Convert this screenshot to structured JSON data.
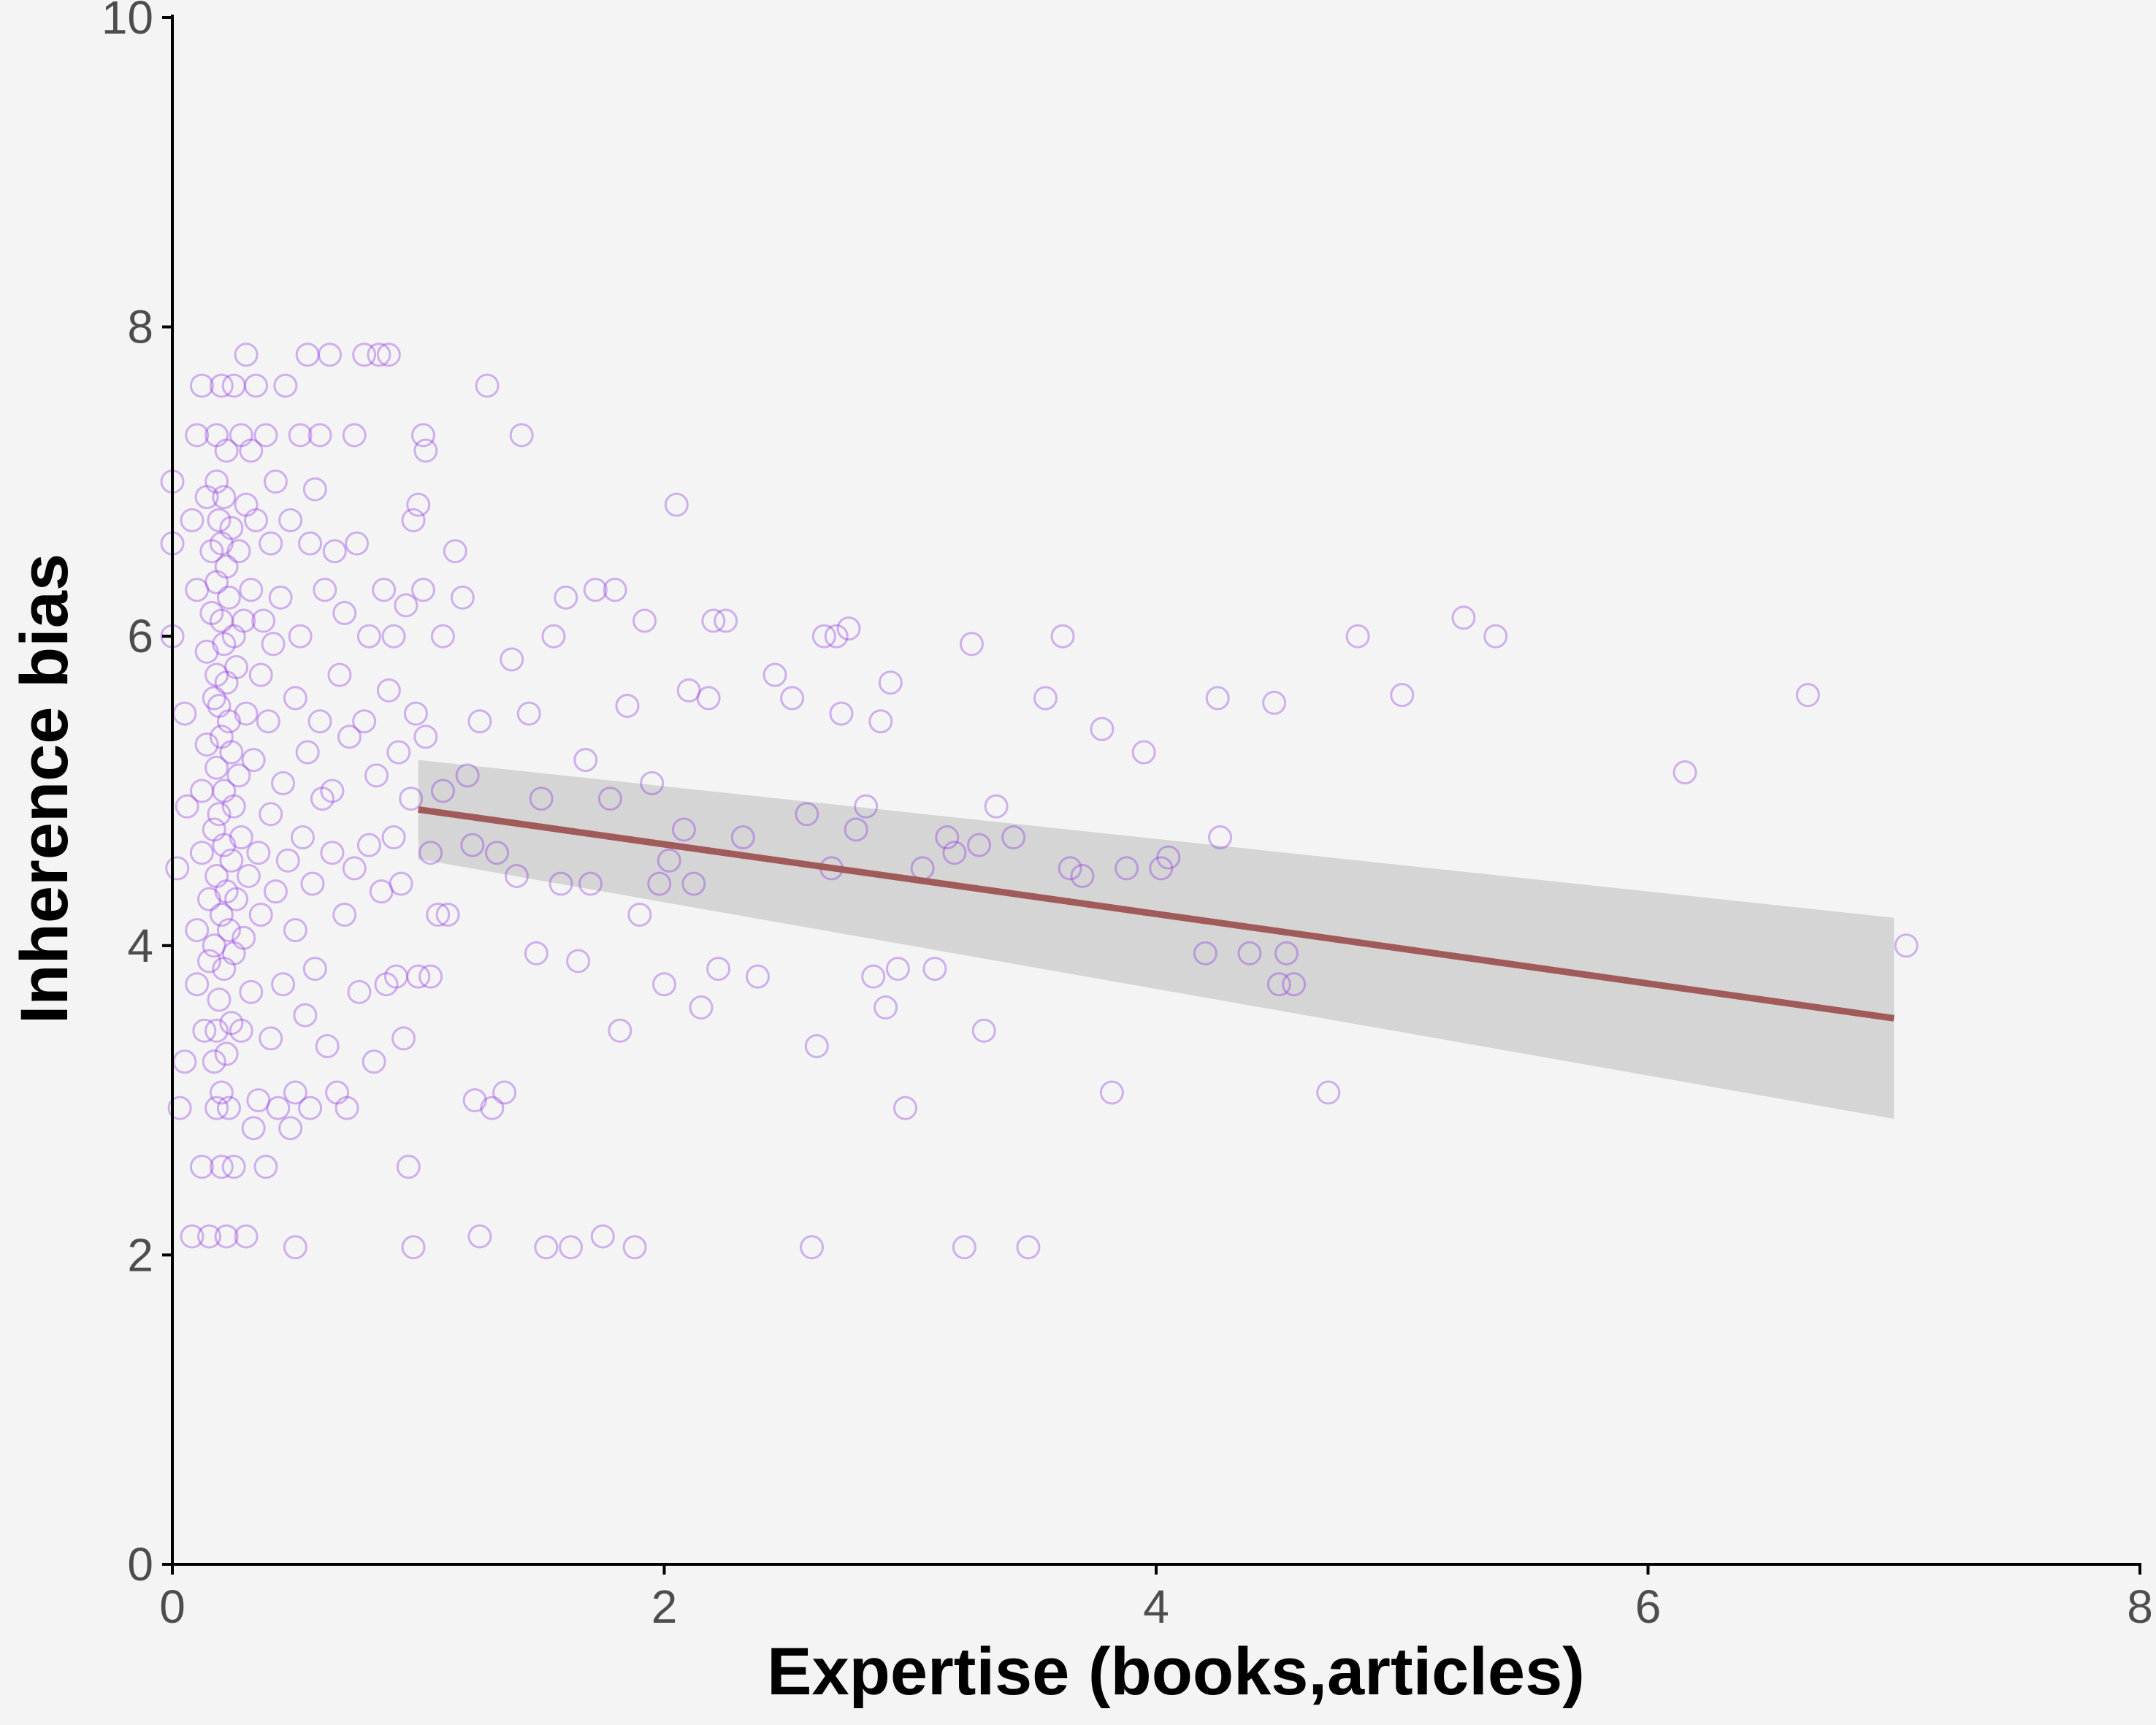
{
  "colors": {
    "background": "#f4f4f4",
    "points": "#8a2be2",
    "fit_line": "#a05a5a",
    "ci_band": "#cfcfcf",
    "axis": "#000000",
    "tick_text": "#4d4d4d"
  },
  "chart_data": {
    "type": "scatter",
    "xlabel": "Expertise (books,articles)",
    "ylabel": "Inherence bias",
    "xlim": [
      0,
      8
    ],
    "ylim": [
      0,
      10
    ],
    "x_ticks": [
      "0",
      "2",
      "4",
      "6",
      "8"
    ],
    "y_ticks": [
      "0",
      "2",
      "4",
      "6",
      "8",
      "10"
    ],
    "grid": false,
    "point_style": "hollow circles, semi-transparent purple",
    "points": [
      [
        0.0,
        7.0
      ],
      [
        0.0,
        6.6
      ],
      [
        0.0,
        6.0
      ],
      [
        0.02,
        4.5
      ],
      [
        0.03,
        2.95
      ],
      [
        0.05,
        3.25
      ],
      [
        0.05,
        5.5
      ],
      [
        0.06,
        4.9
      ],
      [
        0.08,
        2.12
      ],
      [
        0.08,
        6.75
      ],
      [
        0.1,
        3.75
      ],
      [
        0.1,
        4.1
      ],
      [
        0.1,
        6.3
      ],
      [
        0.1,
        7.3
      ],
      [
        0.12,
        7.62
      ],
      [
        0.12,
        5.0
      ],
      [
        0.12,
        4.6
      ],
      [
        0.12,
        2.57
      ],
      [
        0.13,
        3.45
      ],
      [
        0.14,
        6.9
      ],
      [
        0.14,
        5.9
      ],
      [
        0.14,
        5.3
      ],
      [
        0.15,
        4.3
      ],
      [
        0.15,
        3.9
      ],
      [
        0.15,
        2.12
      ],
      [
        0.16,
        6.55
      ],
      [
        0.16,
        6.15
      ],
      [
        0.17,
        5.6
      ],
      [
        0.17,
        4.75
      ],
      [
        0.17,
        4.0
      ],
      [
        0.17,
        3.25
      ],
      [
        0.18,
        7.3
      ],
      [
        0.18,
        7.0
      ],
      [
        0.18,
        6.35
      ],
      [
        0.18,
        5.75
      ],
      [
        0.18,
        5.15
      ],
      [
        0.18,
        4.45
      ],
      [
        0.18,
        3.45
      ],
      [
        0.18,
        2.95
      ],
      [
        0.19,
        6.75
      ],
      [
        0.19,
        5.55
      ],
      [
        0.19,
        4.85
      ],
      [
        0.19,
        3.65
      ],
      [
        0.2,
        7.62
      ],
      [
        0.2,
        6.6
      ],
      [
        0.2,
        6.1
      ],
      [
        0.2,
        5.35
      ],
      [
        0.2,
        4.2
      ],
      [
        0.2,
        3.05
      ],
      [
        0.2,
        2.57
      ],
      [
        0.21,
        6.9
      ],
      [
        0.21,
        5.95
      ],
      [
        0.21,
        5.0
      ],
      [
        0.21,
        4.65
      ],
      [
        0.21,
        3.85
      ],
      [
        0.22,
        7.2
      ],
      [
        0.22,
        6.45
      ],
      [
        0.22,
        5.7
      ],
      [
        0.22,
        4.35
      ],
      [
        0.22,
        3.3
      ],
      [
        0.22,
        2.12
      ],
      [
        0.23,
        6.25
      ],
      [
        0.23,
        5.45
      ],
      [
        0.23,
        4.1
      ],
      [
        0.23,
        2.95
      ],
      [
        0.24,
        6.7
      ],
      [
        0.24,
        5.25
      ],
      [
        0.24,
        4.55
      ],
      [
        0.24,
        3.5
      ],
      [
        0.25,
        7.62
      ],
      [
        0.25,
        6.0
      ],
      [
        0.25,
        4.9
      ],
      [
        0.25,
        3.95
      ],
      [
        0.25,
        2.57
      ],
      [
        0.26,
        5.8
      ],
      [
        0.26,
        4.3
      ],
      [
        0.27,
        6.55
      ],
      [
        0.27,
        5.1
      ],
      [
        0.28,
        7.3
      ],
      [
        0.28,
        4.7
      ],
      [
        0.28,
        3.45
      ],
      [
        0.29,
        6.1
      ],
      [
        0.29,
        4.05
      ],
      [
        0.3,
        7.82
      ],
      [
        0.3,
        6.85
      ],
      [
        0.3,
        5.5
      ],
      [
        0.3,
        2.12
      ],
      [
        0.31,
        4.45
      ],
      [
        0.32,
        7.2
      ],
      [
        0.32,
        6.3
      ],
      [
        0.32,
        3.7
      ],
      [
        0.33,
        5.2
      ],
      [
        0.33,
        2.82
      ],
      [
        0.34,
        7.62
      ],
      [
        0.34,
        6.75
      ],
      [
        0.35,
        4.6
      ],
      [
        0.35,
        3.0
      ],
      [
        0.36,
        5.75
      ],
      [
        0.36,
        4.2
      ],
      [
        0.37,
        6.1
      ],
      [
        0.38,
        7.3
      ],
      [
        0.38,
        2.57
      ],
      [
        0.39,
        5.45
      ],
      [
        0.4,
        6.6
      ],
      [
        0.4,
        4.85
      ],
      [
        0.4,
        3.4
      ],
      [
        0.41,
        5.95
      ],
      [
        0.42,
        7.0
      ],
      [
        0.42,
        4.35
      ],
      [
        0.43,
        2.95
      ],
      [
        0.44,
        6.25
      ],
      [
        0.45,
        5.05
      ],
      [
        0.45,
        3.75
      ],
      [
        0.46,
        7.62
      ],
      [
        0.47,
        4.55
      ],
      [
        0.48,
        6.75
      ],
      [
        0.48,
        2.82
      ],
      [
        0.5,
        5.6
      ],
      [
        0.5,
        4.1
      ],
      [
        0.5,
        3.05
      ],
      [
        0.5,
        2.05
      ],
      [
        0.52,
        7.3
      ],
      [
        0.52,
        6.0
      ],
      [
        0.53,
        4.7
      ],
      [
        0.54,
        3.55
      ],
      [
        0.55,
        7.82
      ],
      [
        0.55,
        5.25
      ],
      [
        0.56,
        6.6
      ],
      [
        0.56,
        2.95
      ],
      [
        0.57,
        4.4
      ],
      [
        0.58,
        6.95
      ],
      [
        0.58,
        3.85
      ],
      [
        0.6,
        5.45
      ],
      [
        0.6,
        7.3
      ],
      [
        0.61,
        4.95
      ],
      [
        0.62,
        6.3
      ],
      [
        0.63,
        3.35
      ],
      [
        0.64,
        7.82
      ],
      [
        0.65,
        5.0
      ],
      [
        0.65,
        4.6
      ],
      [
        0.66,
        6.55
      ],
      [
        0.67,
        3.05
      ],
      [
        0.68,
        5.75
      ],
      [
        0.7,
        4.2
      ],
      [
        0.7,
        6.15
      ],
      [
        0.71,
        2.95
      ],
      [
        0.72,
        5.35
      ],
      [
        0.74,
        7.3
      ],
      [
        0.74,
        4.5
      ],
      [
        0.75,
        6.6
      ],
      [
        0.76,
        3.7
      ],
      [
        0.78,
        5.45
      ],
      [
        0.78,
        7.82
      ],
      [
        0.8,
        4.65
      ],
      [
        0.8,
        6.0
      ],
      [
        0.82,
        3.25
      ],
      [
        0.83,
        5.1
      ],
      [
        0.84,
        7.82
      ],
      [
        0.85,
        4.35
      ],
      [
        0.86,
        6.3
      ],
      [
        0.87,
        3.75
      ],
      [
        0.88,
        5.65
      ],
      [
        0.88,
        7.82
      ],
      [
        0.9,
        4.7
      ],
      [
        0.9,
        6.0
      ],
      [
        0.91,
        3.8
      ],
      [
        0.92,
        5.25
      ],
      [
        0.93,
        4.4
      ],
      [
        0.94,
        3.4
      ],
      [
        0.95,
        6.2
      ],
      [
        0.96,
        2.57
      ],
      [
        0.97,
        4.95
      ],
      [
        0.98,
        6.75
      ],
      [
        0.98,
        2.05
      ],
      [
        0.99,
        5.5
      ],
      [
        1.0,
        6.85
      ],
      [
        1.0,
        3.8
      ],
      [
        1.02,
        7.3
      ],
      [
        1.02,
        6.3
      ],
      [
        1.03,
        5.35
      ],
      [
        1.03,
        7.2
      ],
      [
        1.05,
        3.8
      ],
      [
        1.05,
        4.6
      ],
      [
        1.08,
        4.2
      ],
      [
        1.1,
        6.0
      ],
      [
        1.1,
        5.0
      ],
      [
        1.12,
        4.2
      ],
      [
        1.15,
        6.55
      ],
      [
        1.18,
        6.25
      ],
      [
        1.2,
        5.1
      ],
      [
        1.22,
        4.65
      ],
      [
        1.23,
        3.0
      ],
      [
        1.25,
        5.45
      ],
      [
        1.25,
        2.12
      ],
      [
        1.28,
        7.62
      ],
      [
        1.3,
        2.95
      ],
      [
        1.32,
        4.6
      ],
      [
        1.35,
        3.05
      ],
      [
        1.38,
        5.85
      ],
      [
        1.4,
        4.45
      ],
      [
        1.42,
        7.3
      ],
      [
        1.45,
        5.5
      ],
      [
        1.48,
        3.95
      ],
      [
        1.5,
        4.95
      ],
      [
        1.52,
        2.05
      ],
      [
        1.55,
        6.0
      ],
      [
        1.58,
        4.4
      ],
      [
        1.6,
        6.25
      ],
      [
        1.62,
        2.05
      ],
      [
        1.65,
        3.9
      ],
      [
        1.68,
        5.2
      ],
      [
        1.7,
        4.4
      ],
      [
        1.72,
        6.3
      ],
      [
        1.75,
        2.12
      ],
      [
        1.78,
        4.95
      ],
      [
        1.8,
        6.3
      ],
      [
        1.82,
        3.45
      ],
      [
        1.85,
        5.55
      ],
      [
        1.88,
        2.05
      ],
      [
        1.9,
        4.2
      ],
      [
        1.92,
        6.1
      ],
      [
        1.95,
        5.05
      ],
      [
        1.98,
        4.4
      ],
      [
        2.0,
        3.75
      ],
      [
        2.02,
        4.55
      ],
      [
        2.05,
        6.85
      ],
      [
        2.08,
        4.75
      ],
      [
        2.1,
        5.65
      ],
      [
        2.12,
        4.4
      ],
      [
        2.15,
        3.6
      ],
      [
        2.18,
        5.6
      ],
      [
        2.2,
        6.1
      ],
      [
        2.22,
        3.85
      ],
      [
        2.25,
        6.1
      ],
      [
        2.32,
        4.7
      ],
      [
        2.38,
        3.8
      ],
      [
        2.45,
        5.75
      ],
      [
        2.52,
        5.6
      ],
      [
        2.58,
        4.85
      ],
      [
        2.6,
        2.05
      ],
      [
        2.62,
        3.35
      ],
      [
        2.65,
        6.0
      ],
      [
        2.68,
        4.5
      ],
      [
        2.7,
        6.0
      ],
      [
        2.72,
        5.5
      ],
      [
        2.75,
        6.05
      ],
      [
        2.78,
        4.75
      ],
      [
        2.82,
        4.9
      ],
      [
        2.85,
        3.8
      ],
      [
        2.88,
        5.45
      ],
      [
        2.9,
        3.6
      ],
      [
        2.92,
        5.7
      ],
      [
        2.95,
        3.85
      ],
      [
        2.98,
        2.95
      ],
      [
        3.05,
        4.5
      ],
      [
        3.1,
        3.85
      ],
      [
        3.15,
        4.7
      ],
      [
        3.18,
        4.6
      ],
      [
        3.22,
        2.05
      ],
      [
        3.25,
        5.95
      ],
      [
        3.28,
        4.65
      ],
      [
        3.3,
        3.45
      ],
      [
        3.35,
        4.9
      ],
      [
        3.42,
        4.7
      ],
      [
        3.48,
        2.05
      ],
      [
        3.55,
        5.6
      ],
      [
        3.62,
        6.0
      ],
      [
        3.65,
        4.5
      ],
      [
        3.7,
        4.45
      ],
      [
        3.78,
        5.4
      ],
      [
        3.82,
        3.05
      ],
      [
        3.88,
        4.5
      ],
      [
        3.95,
        5.25
      ],
      [
        4.02,
        4.5
      ],
      [
        4.05,
        4.57
      ],
      [
        4.2,
        3.95
      ],
      [
        4.25,
        5.6
      ],
      [
        4.26,
        4.7
      ],
      [
        4.38,
        3.95
      ],
      [
        4.48,
        5.57
      ],
      [
        4.5,
        3.75
      ],
      [
        4.53,
        3.95
      ],
      [
        4.56,
        3.75
      ],
      [
        4.7,
        3.05
      ],
      [
        4.82,
        6.0
      ],
      [
        5.0,
        5.62
      ],
      [
        5.25,
        6.12
      ],
      [
        5.38,
        6.0
      ],
      [
        6.15,
        5.12
      ],
      [
        6.65,
        5.62
      ],
      [
        7.05,
        4.0
      ]
    ],
    "fit_line": {
      "x": [
        1.0,
        7.0
      ],
      "y": [
        4.88,
        3.53
      ]
    },
    "ci_band": {
      "x": [
        1.0,
        7.0
      ],
      "upper": [
        5.2,
        4.18
      ],
      "lower": [
        4.56,
        2.88
      ]
    }
  }
}
